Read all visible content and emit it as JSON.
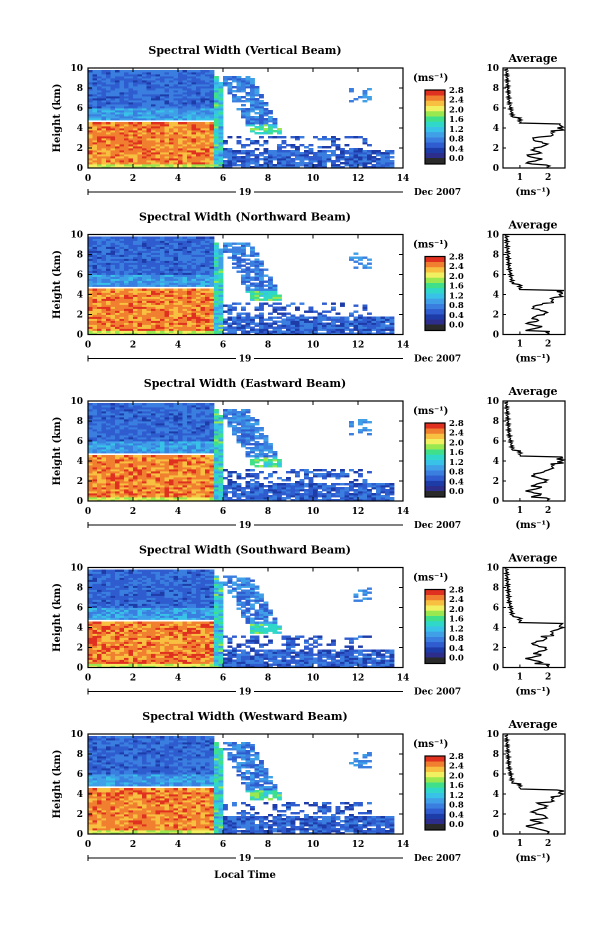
{
  "figure": {
    "xlabel_bottom": "Local Time"
  },
  "colors": {
    "scale": [
      "#2d2d8c",
      "#1e3ca8",
      "#2f5ccf",
      "#3a7ee0",
      "#3fa0e8",
      "#39c2e8",
      "#2fd8c8",
      "#40e08a",
      "#9ae850",
      "#f0f060",
      "#f8c040",
      "#f08030",
      "#e03020"
    ],
    "white": "#ffffff"
  },
  "chart_data": [
    {
      "type": "heatmap",
      "title": "Spectral Width (Vertical Beam)",
      "ylabel": "Height (km)",
      "xticks": [
        "0",
        "2",
        "4",
        "6",
        "8",
        "10",
        "12",
        "14"
      ],
      "yticks": [
        "0",
        "2",
        "4",
        "6",
        "8",
        "10"
      ],
      "xlim": [
        0,
        14
      ],
      "ylim": [
        0,
        10
      ],
      "date_day": "19",
      "date_label": "Dec 2007",
      "colorbar": {
        "unit": "(ms⁻¹)",
        "ticks": [
          "2.8",
          "2.4",
          "2.0",
          "1.6",
          "1.2",
          "0.8",
          "0.4",
          "0.0"
        ],
        "range": [
          0,
          2.8
        ]
      },
      "profile": {
        "title": "Average",
        "xlabel": "(ms⁻¹)",
        "xticks": [
          "1",
          "2"
        ],
        "xlim": [
          0.4,
          2.6
        ],
        "yticks": [
          "0",
          "2",
          "4",
          "6",
          "8",
          "10"
        ],
        "ylim": [
          0,
          10
        ]
      }
    },
    {
      "type": "heatmap",
      "title": "Spectral Width (Northward Beam)",
      "ylabel": "Height (km)",
      "xticks": [
        "0",
        "2",
        "4",
        "6",
        "8",
        "10",
        "12",
        "14"
      ],
      "yticks": [
        "0",
        "2",
        "4",
        "6",
        "8",
        "10"
      ],
      "xlim": [
        0,
        14
      ],
      "ylim": [
        0,
        10
      ],
      "date_day": "19",
      "date_label": "Dec 2007",
      "colorbar": {
        "unit": "(ms⁻¹)",
        "ticks": [
          "2.8",
          "2.4",
          "2.0",
          "1.6",
          "1.2",
          "0.8",
          "0.4",
          "0.0"
        ],
        "range": [
          0,
          2.8
        ]
      },
      "profile": {
        "title": "Average",
        "xlabel": "(ms⁻¹)",
        "xticks": [
          "1",
          "2"
        ],
        "xlim": [
          0.4,
          2.6
        ],
        "yticks": [
          "0",
          "2",
          "4",
          "6",
          "8",
          "10"
        ],
        "ylim": [
          0,
          10
        ]
      }
    },
    {
      "type": "heatmap",
      "title": "Spectral Width (Eastward Beam)",
      "ylabel": "Height (km)",
      "xticks": [
        "0",
        "2",
        "4",
        "6",
        "8",
        "10",
        "12",
        "14"
      ],
      "yticks": [
        "0",
        "2",
        "4",
        "6",
        "8",
        "10"
      ],
      "xlim": [
        0,
        14
      ],
      "ylim": [
        0,
        10
      ],
      "date_day": "19",
      "date_label": "Dec 2007",
      "colorbar": {
        "unit": "(ms⁻¹)",
        "ticks": [
          "2.8",
          "2.4",
          "2.0",
          "1.6",
          "1.2",
          "0.8",
          "0.4",
          "0.0"
        ],
        "range": [
          0,
          2.8
        ]
      },
      "profile": {
        "title": "Average",
        "xlabel": "(ms⁻¹)",
        "xticks": [
          "1",
          "2"
        ],
        "xlim": [
          0.4,
          2.6
        ],
        "yticks": [
          "0",
          "2",
          "4",
          "6",
          "8",
          "10"
        ],
        "ylim": [
          0,
          10
        ]
      }
    },
    {
      "type": "heatmap",
      "title": "Spectral Width (Southward Beam)",
      "ylabel": "Height (km)",
      "xticks": [
        "0",
        "2",
        "4",
        "6",
        "8",
        "10",
        "12",
        "14"
      ],
      "yticks": [
        "0",
        "2",
        "4",
        "6",
        "8",
        "10"
      ],
      "xlim": [
        0,
        14
      ],
      "ylim": [
        0,
        10
      ],
      "date_day": "19",
      "date_label": "Dec 2007",
      "colorbar": {
        "unit": "(ms⁻¹)",
        "ticks": [
          "2.8",
          "2.4",
          "2.0",
          "1.6",
          "1.2",
          "0.8",
          "0.4",
          "0.0"
        ],
        "range": [
          0,
          2.8
        ]
      },
      "profile": {
        "title": "Average",
        "xlabel": "(ms⁻¹)",
        "xticks": [
          "1",
          "2"
        ],
        "xlim": [
          0.4,
          2.6
        ],
        "yticks": [
          "0",
          "2",
          "4",
          "6",
          "8",
          "10"
        ],
        "ylim": [
          0,
          10
        ]
      }
    },
    {
      "type": "heatmap",
      "title": "Spectral Width (Westward Beam)",
      "ylabel": "Height (km)",
      "xticks": [
        "0",
        "2",
        "4",
        "6",
        "8",
        "10",
        "12",
        "14"
      ],
      "yticks": [
        "0",
        "2",
        "4",
        "6",
        "8",
        "10"
      ],
      "xlim": [
        0,
        14
      ],
      "ylim": [
        0,
        10
      ],
      "date_day": "19",
      "date_label": "Dec 2007",
      "colorbar": {
        "unit": "(ms⁻¹)",
        "ticks": [
          "2.8",
          "2.4",
          "2.0",
          "1.6",
          "1.2",
          "0.8",
          "0.4",
          "0.0"
        ],
        "range": [
          0,
          2.8
        ]
      },
      "profile": {
        "title": "Average",
        "xlabel": "(ms⁻¹)",
        "xticks": [
          "1",
          "2"
        ],
        "xlim": [
          0.4,
          2.6
        ],
        "yticks": [
          "0",
          "2",
          "4",
          "6",
          "8",
          "10"
        ],
        "ylim": [
          0,
          10
        ]
      }
    }
  ]
}
